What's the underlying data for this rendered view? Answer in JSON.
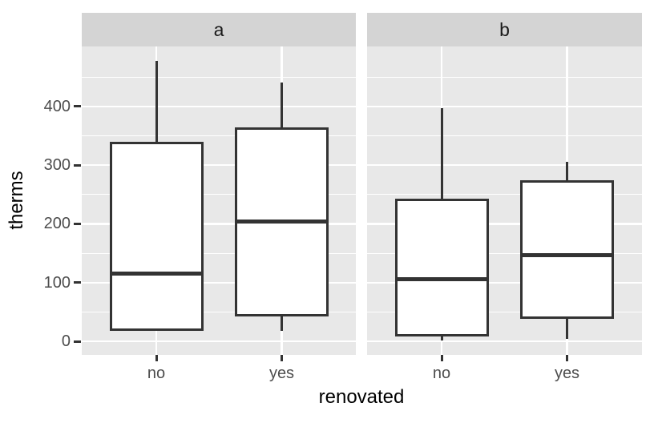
{
  "colors": {
    "background": "#FFFFFF",
    "panel_bg": "#E8E8E8",
    "strip_bg": "#D4D4D4",
    "grid": "#FFFFFF",
    "box_fill": "#FFFFFF",
    "box_stroke": "#333333",
    "tick_label": "#4D4D4D",
    "axis_title": "#000000",
    "strip_label": "#1A1A1A"
  },
  "chart_data": {
    "type": "boxplot",
    "title": "",
    "xlabel": "renovated",
    "ylabel": "therms",
    "categories": [
      "no",
      "yes"
    ],
    "facet_labels": [
      "a",
      "b"
    ],
    "yticks": [
      0,
      100,
      200,
      300,
      400
    ],
    "yticks_minor": [
      50,
      150,
      250,
      350,
      450
    ],
    "ylim": [
      -23,
      502
    ],
    "grid": "on",
    "legend": "none",
    "facets": [
      {
        "label": "a",
        "boxes": [
          {
            "category": "no",
            "whisker_low": 18,
            "q1": 18,
            "median": 116,
            "q3": 340,
            "whisker_high": 477
          },
          {
            "category": "yes",
            "whisker_low": 18,
            "q1": 43,
            "median": 204,
            "q3": 364,
            "whisker_high": 440
          }
        ]
      },
      {
        "label": "b",
        "boxes": [
          {
            "category": "no",
            "whisker_low": 1,
            "q1": 9,
            "median": 106,
            "q3": 243,
            "whisker_high": 397
          },
          {
            "category": "yes",
            "whisker_low": 4,
            "q1": 38,
            "median": 147,
            "q3": 274,
            "whisker_high": 306
          }
        ]
      }
    ]
  }
}
